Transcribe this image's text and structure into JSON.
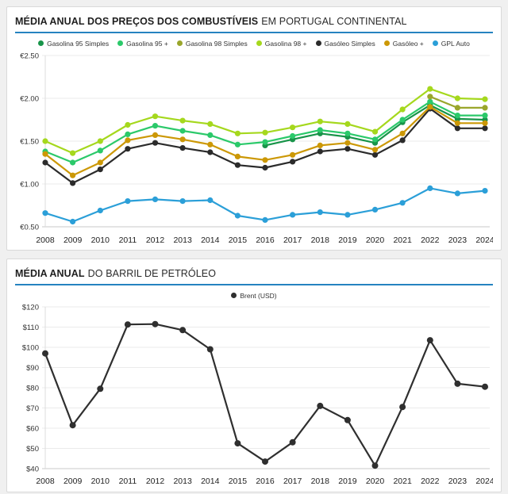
{
  "chart_data": [
    {
      "id": "fuel-prices",
      "type": "line",
      "title_bold": "MÉDIA ANUAL DOS PREÇOS DOS COMBUSTÍVEIS",
      "title_regular": "EM PORTUGAL CONTINENTAL",
      "legend_position": "top",
      "grid": true,
      "x": [
        2008,
        2009,
        2010,
        2011,
        2012,
        2013,
        2014,
        2015,
        2016,
        2017,
        2018,
        2019,
        2020,
        2021,
        2022,
        2023,
        2024
      ],
      "ylim": [
        0.5,
        2.5
      ],
      "ytick_values": [
        2.5,
        2.0,
        1.5,
        1.0,
        0.5
      ],
      "ytick_labels": [
        "€2.50",
        "€2.00",
        "€1.50",
        "€1.00",
        "€0.50"
      ],
      "series": [
        {
          "name": "Gasolina 95 Simples",
          "color": "#189449",
          "values": [
            null,
            null,
            null,
            null,
            null,
            null,
            null,
            null,
            1.45,
            1.52,
            1.59,
            1.55,
            1.48,
            1.72,
            1.92,
            1.76,
            1.75
          ]
        },
        {
          "name": "Gasolina 95 +",
          "color": "#2bc96a",
          "values": [
            1.38,
            1.25,
            1.39,
            1.58,
            1.68,
            1.62,
            1.57,
            1.46,
            1.49,
            1.56,
            1.63,
            1.59,
            1.52,
            1.75,
            1.96,
            1.8,
            1.8
          ]
        },
        {
          "name": "Gasolina 98 Simples",
          "color": "#9aa62b",
          "values": [
            null,
            null,
            null,
            null,
            null,
            null,
            null,
            null,
            null,
            null,
            null,
            null,
            null,
            null,
            2.02,
            1.89,
            1.89
          ]
        },
        {
          "name": "Gasolina 98 +",
          "color": "#a5d81d",
          "values": [
            1.5,
            1.36,
            1.5,
            1.69,
            1.79,
            1.74,
            1.7,
            1.59,
            1.6,
            1.66,
            1.73,
            1.7,
            1.61,
            1.87,
            2.11,
            2.0,
            1.99
          ]
        },
        {
          "name": "Gasóleo Simples",
          "color": "#2b2b2b",
          "values": [
            1.25,
            1.01,
            1.17,
            1.41,
            1.48,
            1.42,
            1.37,
            1.22,
            1.19,
            1.26,
            1.38,
            1.41,
            1.34,
            1.51,
            1.88,
            1.65,
            1.65
          ]
        },
        {
          "name": "Gasóleo +",
          "color": "#cc9806",
          "values": [
            1.35,
            1.1,
            1.25,
            1.51,
            1.57,
            1.52,
            1.46,
            1.32,
            1.28,
            1.34,
            1.45,
            1.48,
            1.4,
            1.59,
            1.9,
            1.71,
            1.71
          ]
        },
        {
          "name": "GPL Auto",
          "color": "#2b9fd8",
          "values": [
            0.66,
            0.56,
            0.69,
            0.8,
            0.82,
            0.8,
            0.81,
            0.63,
            0.58,
            0.64,
            0.67,
            0.64,
            0.7,
            0.78,
            0.95,
            0.89,
            0.92
          ]
        }
      ]
    },
    {
      "id": "oil-barrel",
      "type": "line",
      "title_bold": "MÉDIA ANUAL",
      "title_regular": "DO BARRIL DE PETRÓLEO",
      "legend_position": "top",
      "grid": true,
      "x": [
        2008,
        2009,
        2010,
        2011,
        2012,
        2013,
        2014,
        2015,
        2016,
        2017,
        2018,
        2019,
        2020,
        2021,
        2022,
        2023,
        2024
      ],
      "ylim": [
        40,
        120
      ],
      "ytick_values": [
        120,
        110,
        100,
        90,
        80,
        70,
        60,
        50,
        40
      ],
      "ytick_labels": [
        "$120",
        "$110",
        "$100",
        "$90",
        "$80",
        "$70",
        "$60",
        "$50",
        "$40"
      ],
      "series": [
        {
          "name": "Brent (USD)",
          "color": "#2f2f2f",
          "values": [
            97,
            61.5,
            79.5,
            111.3,
            111.5,
            108.5,
            99,
            52.5,
            43.5,
            53,
            71,
            64,
            41.5,
            70.5,
            103.5,
            82,
            80.5
          ]
        }
      ]
    }
  ],
  "accent_color": "#2583c0"
}
